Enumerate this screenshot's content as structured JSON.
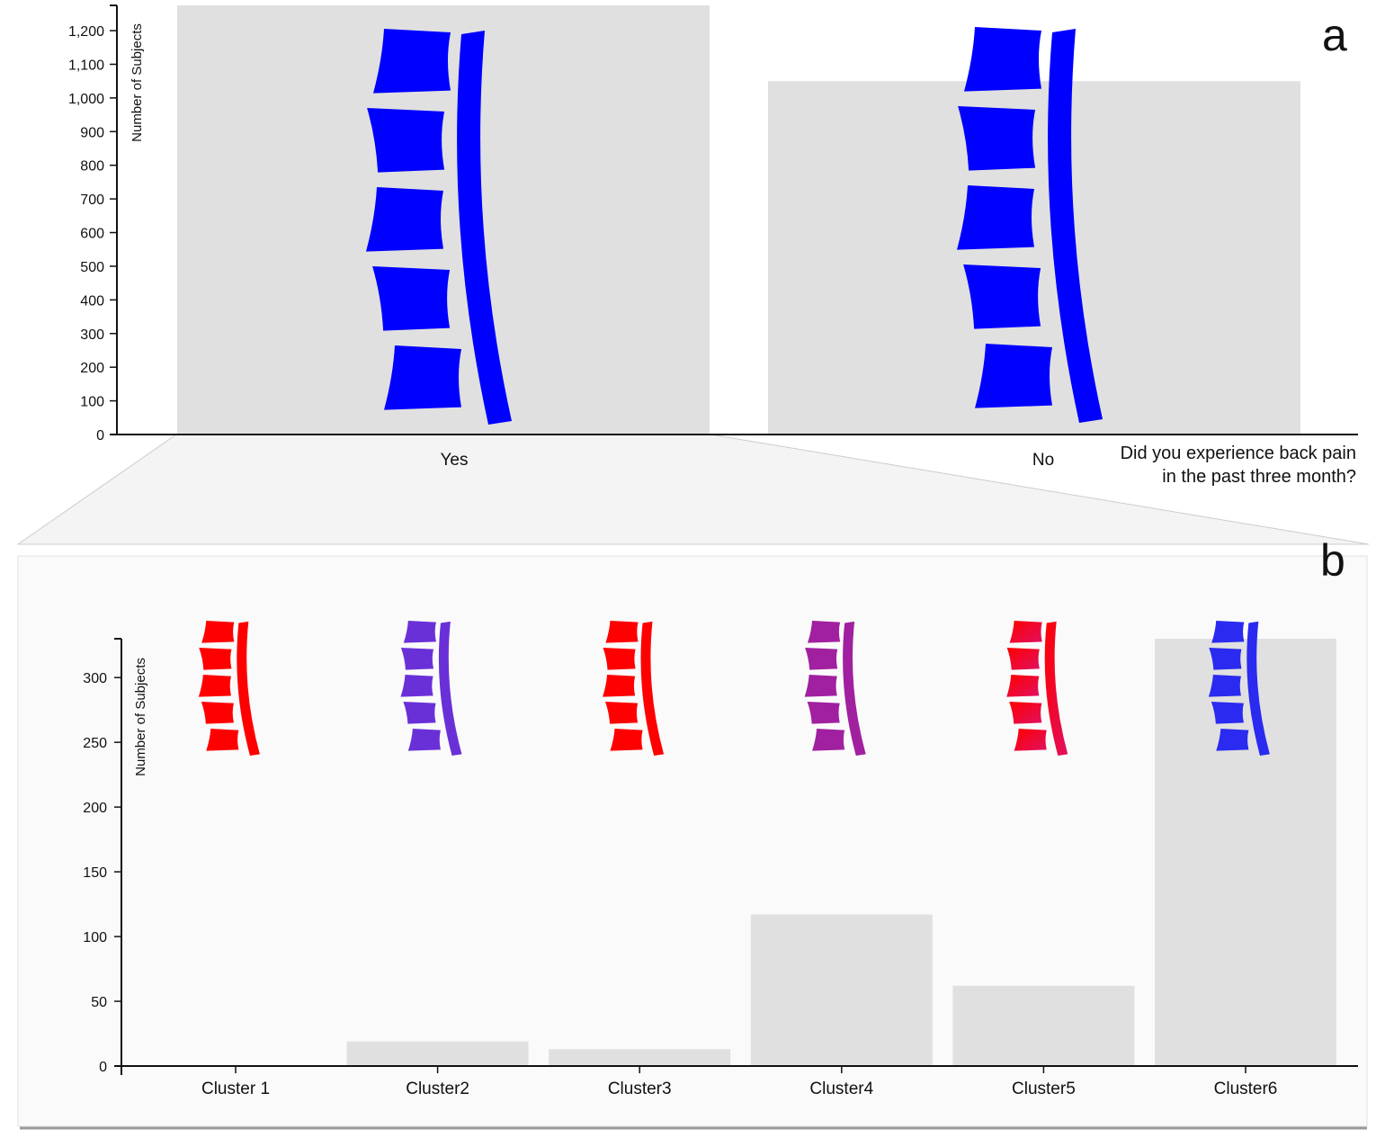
{
  "colors": {
    "bar": "#e0e0e0",
    "axis": "#111111",
    "spine_blue": "#0000ff",
    "spine_red": "#ff0000",
    "panel_bg": "#fafafa"
  },
  "chart_data": [
    {
      "id": "a",
      "type": "bar",
      "panel_label": "a",
      "ylabel": "Number of Subjects",
      "xlabel_lines": [
        "Did you experience back pain",
        "in the past three month?"
      ],
      "categories": [
        "Yes",
        "No"
      ],
      "values": [
        1275,
        1050
      ],
      "ylim": [
        0,
        1275
      ],
      "yticks": [
        0,
        100,
        200,
        300,
        400,
        500,
        600,
        700,
        800,
        900,
        1000,
        1100,
        1200
      ],
      "ytick_labels": [
        "0",
        "100",
        "200",
        "300",
        "400",
        "500",
        "600",
        "700",
        "800",
        "900",
        "1,000",
        "1,100",
        "1,200"
      ],
      "spine_colors": [
        "#0000ff",
        "#0000ff"
      ],
      "grid": false
    },
    {
      "id": "b",
      "type": "bar",
      "panel_label": "b",
      "ylabel": "Number of Subjects",
      "categories": [
        "Cluster 1",
        "Cluster2",
        "Cluster3",
        "Cluster4",
        "Cluster5",
        "Cluster6"
      ],
      "values": [
        0,
        19,
        13,
        117,
        62,
        330
      ],
      "ylim": [
        0,
        330
      ],
      "yticks": [
        0,
        50,
        100,
        150,
        200,
        250,
        300
      ],
      "ytick_labels": [
        "0",
        "50",
        "100",
        "150",
        "200",
        "250",
        "300"
      ],
      "spine_tops": [
        "#ff0000",
        "#6a30d8",
        "#ff0000",
        "#a020a0",
        "#ff0000",
        "#2a2af0"
      ],
      "spine_bottoms": [
        "#ff0000",
        "#6a30d8",
        "#ff0000",
        "#a020a0",
        "#e01060",
        "#2a2af0"
      ],
      "grid": false
    }
  ]
}
